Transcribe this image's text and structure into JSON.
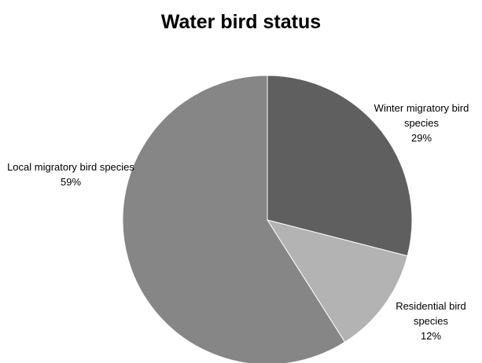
{
  "chart_data": {
    "type": "pie",
    "title": "Water bird status",
    "categories": [
      "Winter migratory bird species",
      "Residential bird species",
      "Local migratory bird species"
    ],
    "values": [
      29,
      12,
      59
    ],
    "value_labels": [
      "29%",
      "12%",
      "59%"
    ],
    "colors": [
      "#5f5f5f",
      "#b3b3b3",
      "#868686"
    ]
  }
}
